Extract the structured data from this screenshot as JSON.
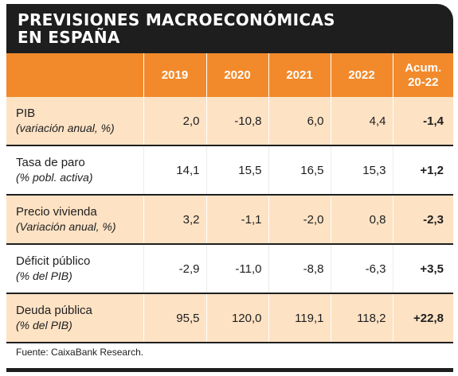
{
  "title": {
    "line1": "PREVISIONES MACROECONÓMICAS",
    "line2": "EN ESPAÑA"
  },
  "header": {
    "blank": "",
    "years": [
      "2019",
      "2020",
      "2021",
      "2022"
    ],
    "acum_line1": "Acum.",
    "acum_line2": "20-22"
  },
  "rows": [
    {
      "label": "PIB",
      "sublabel": "(variación anual, %)",
      "values": [
        "2,0",
        "-10,8",
        "6,0",
        "4,4"
      ],
      "acum": "-1,4"
    },
    {
      "label": "Tasa de paro",
      "sublabel": "(% pobl. activa)",
      "values": [
        "14,1",
        "15,5",
        "16,5",
        "15,3"
      ],
      "acum": "+1,2"
    },
    {
      "label": "Precio vivienda",
      "sublabel": "(Variación anual, %)",
      "values": [
        "3,2",
        "-1,1",
        "-2,0",
        "0,8"
      ],
      "acum": "-2,3"
    },
    {
      "label": "Déficit público",
      "sublabel": "(% del PIB)",
      "values": [
        "-2,9",
        "-11,0",
        "-8,8",
        "-6,3"
      ],
      "acum": "+3,5"
    },
    {
      "label": "Deuda pública",
      "sublabel": "(% del PIB)",
      "values": [
        "95,5",
        "120,0",
        "119,1",
        "118,2"
      ],
      "acum": "+22,8"
    }
  ],
  "source": "Fuente: CaixaBank Research.",
  "colors": {
    "header_orange": "#f28a2c",
    "row_peach": "#fde2c4",
    "dark": "#1e1e1e"
  }
}
